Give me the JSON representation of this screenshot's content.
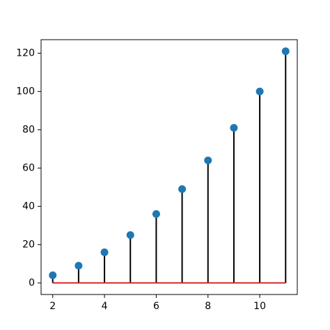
{
  "chart_data": {
    "type": "stem",
    "x": [
      2,
      3,
      4,
      5,
      6,
      7,
      8,
      9,
      10,
      11
    ],
    "values": [
      4,
      9,
      16,
      25,
      36,
      49,
      64,
      81,
      100,
      121
    ],
    "marker_color": "#1f77b4",
    "stem_color": "#000000",
    "baseline_color": "#d62728",
    "baseline": 0,
    "xlim": [
      1.55,
      11.45
    ],
    "ylim": [
      -6.05,
      127.05
    ],
    "xticks": [
      2,
      4,
      6,
      8,
      10
    ],
    "yticks": [
      0,
      20,
      40,
      60,
      80,
      100,
      120
    ]
  }
}
